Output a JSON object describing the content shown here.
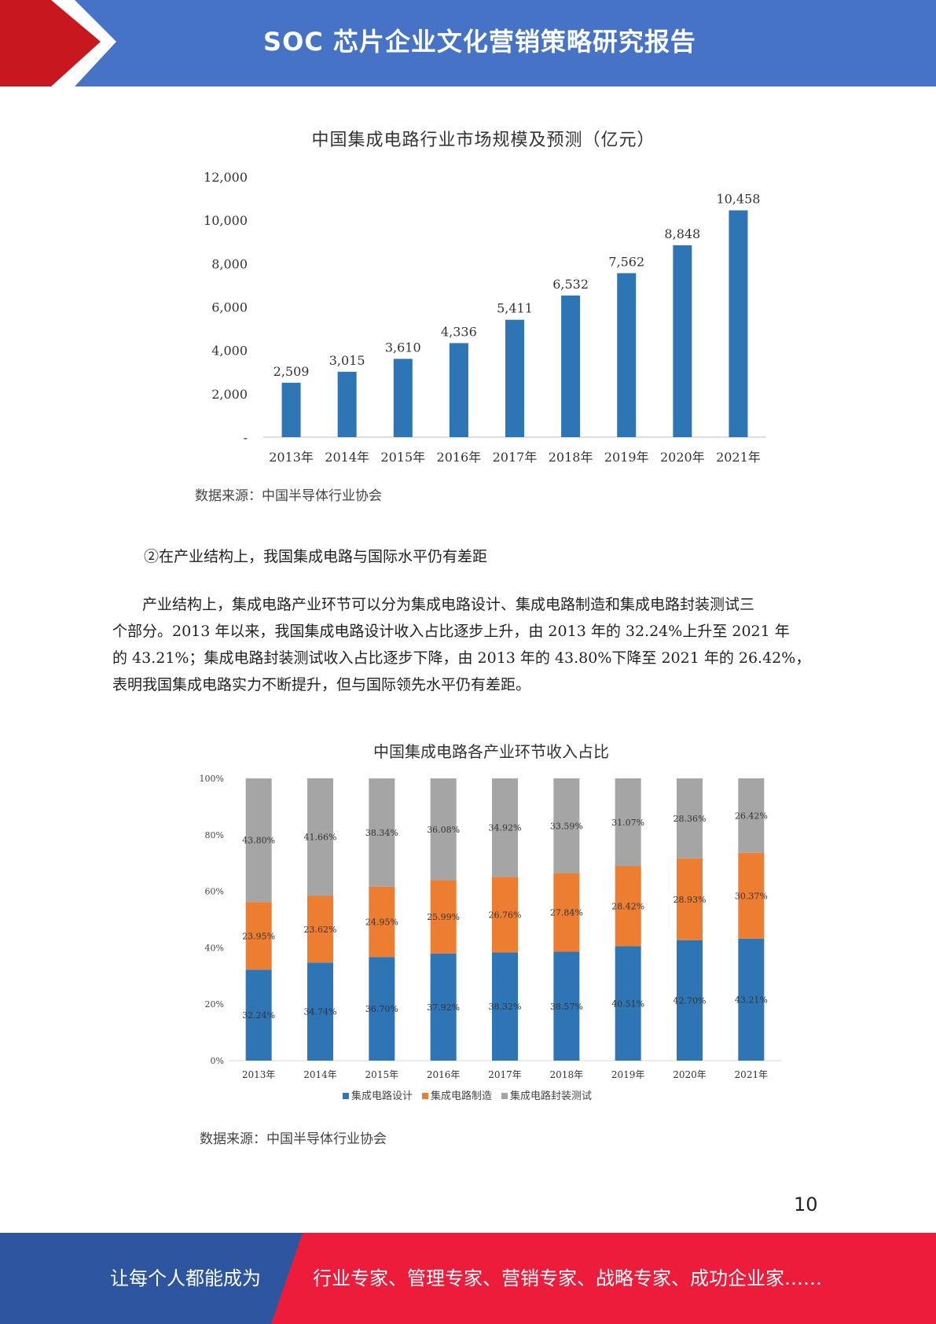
{
  "header": {
    "title": "SOC 芯片企业文化营销策略研究报告"
  },
  "colors": {
    "header_blue": "#4673c6",
    "accent_red": "#c8171e",
    "footer_blue": "#2e56a0",
    "footer_red": "#ee1c3b",
    "bar_blue": "#2e75b6",
    "bar_orange": "#ed7d31",
    "bar_gray": "#a5a5a5"
  },
  "chart_data": [
    {
      "type": "bar",
      "title": "中国集成电路行业市场规模及预测（亿元）",
      "categories": [
        "2013年",
        "2014年",
        "2015年",
        "2016年",
        "2017年",
        "2018年",
        "2019年",
        "2020年",
        "2021年"
      ],
      "values": [
        2509,
        3015,
        3610,
        4336,
        5411,
        6532,
        7562,
        8848,
        10458
      ],
      "value_labels": [
        "2,509",
        "3,015",
        "3,610",
        "4,336",
        "5,411",
        "6,532",
        "7,562",
        "8,848",
        "10,458"
      ],
      "yticks": [
        "-",
        "2,000",
        "4,000",
        "6,000",
        "8,000",
        "10,000",
        "12,000"
      ],
      "ylim": [
        0,
        12000
      ],
      "grid": false,
      "source": "数据来源：中国半导体行业协会"
    },
    {
      "type": "bar",
      "stacked": true,
      "title": "中国集成电路各产业环节收入占比",
      "categories": [
        "2013年",
        "2014年",
        "2015年",
        "2016年",
        "2017年",
        "2018年",
        "2019年",
        "2020年",
        "2021年"
      ],
      "yticks": [
        "0%",
        "20%",
        "40%",
        "60%",
        "80%",
        "100%"
      ],
      "ylim": [
        0,
        100
      ],
      "legend_position": "bottom",
      "series": [
        {
          "name": "集成电路设计",
          "color": "#2e75b6",
          "values": [
            32.24,
            34.74,
            36.7,
            37.92,
            38.32,
            38.57,
            40.51,
            42.7,
            43.21
          ],
          "labels": [
            "32.24%",
            "34.74%",
            "36.70%",
            "37.92%",
            "38.32%",
            "38.57%",
            "40.51%",
            "42.70%",
            "43.21%"
          ]
        },
        {
          "name": "集成电路制造",
          "color": "#ed7d31",
          "values": [
            23.95,
            23.62,
            24.95,
            25.99,
            26.76,
            27.84,
            28.42,
            28.93,
            30.37
          ],
          "labels": [
            "23.95%",
            "23.62%",
            "24.95%",
            "25.99%",
            "26.76%",
            "27.84%",
            "28.42%",
            "28.93%",
            "30.37%"
          ]
        },
        {
          "name": "集成电路封装测试",
          "color": "#a5a5a5",
          "values": [
            43.8,
            41.66,
            38.34,
            36.08,
            34.92,
            33.59,
            31.07,
            28.36,
            26.42
          ],
          "labels": [
            "43.80%",
            "41.66%",
            "38.34%",
            "36.08%",
            "34.92%",
            "33.59%",
            "31.07%",
            "28.36%",
            "26.42%"
          ]
        }
      ],
      "source": "数据来源：中国半导体行业协会"
    }
  ],
  "body": {
    "heading": "②在产业结构上，我国集成电路与国际水平仍有差距",
    "paragraph_lines": [
      "　　产业结构上，集成电路产业环节可以分为集成电路设计、集成电路制造和集成电路封装测试三",
      "个部分。2013 年以来，我国集成电路设计收入占比逐步上升，由 2013 年的 32.24%上升至 2021 年",
      "的 43.21%；集成电路封装测试收入占比逐步下降，由 2013 年的 43.80%下降至 2021 年的 26.42%，",
      "表明我国集成电路实力不断提升，但与国际领先水平仍有差距。"
    ]
  },
  "page_number": "10",
  "footer": {
    "left_text": "让每个人都能成为",
    "right_text": "行业专家、管理专家、营销专家、战略专家、成功企业家……"
  }
}
